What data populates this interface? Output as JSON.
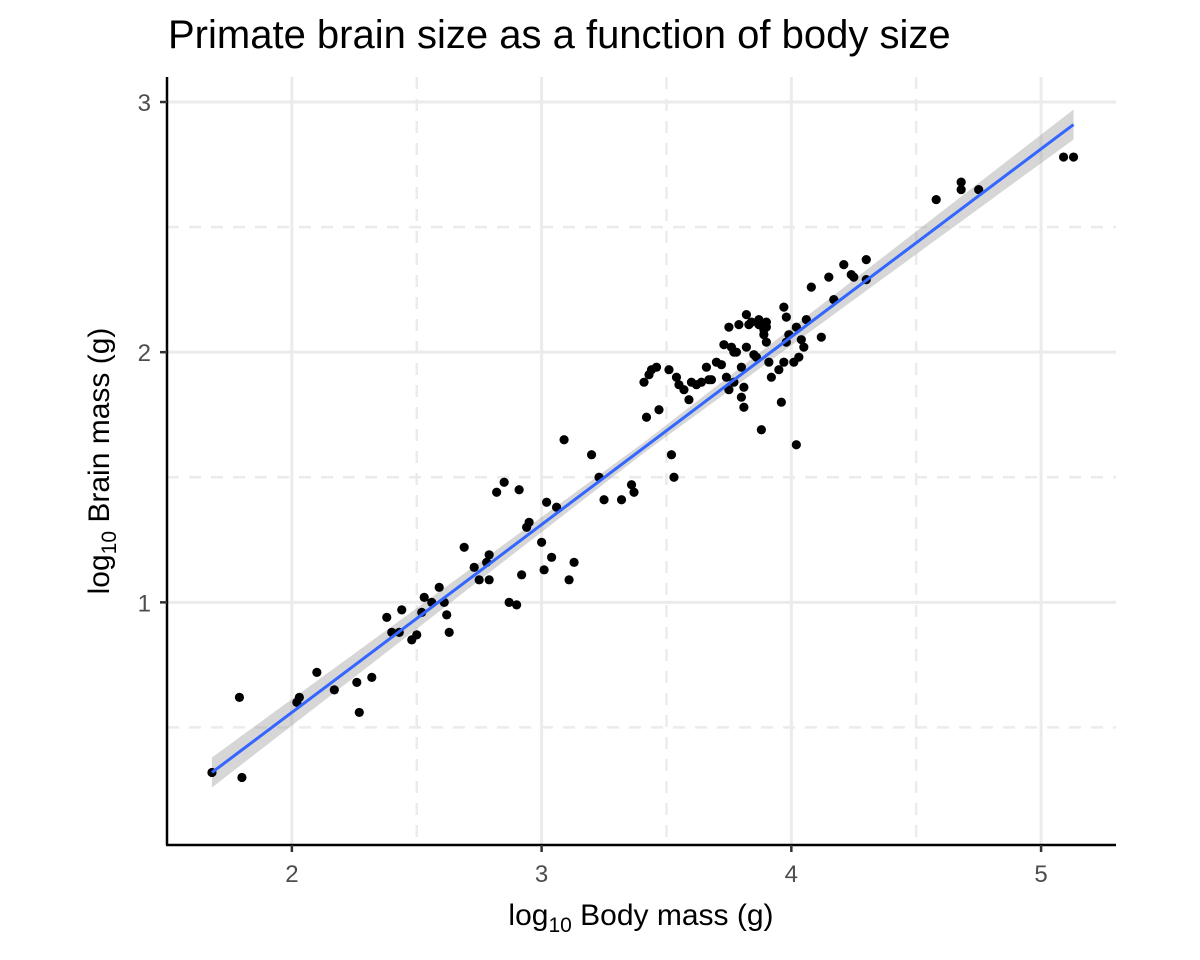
{
  "chart_data": {
    "type": "scatter",
    "title": "Primate brain size as a function of body size",
    "xlabel": {
      "prefix": "log",
      "subscript": "10",
      "suffix": " Body mass (g)"
    },
    "ylabel": {
      "prefix": "log",
      "subscript": "10",
      "suffix": " Brain mass (g)"
    },
    "xlim": [
      1.5,
      5.3
    ],
    "ylim": [
      0.03,
      3.1
    ],
    "xticks": [
      2,
      3,
      4,
      5
    ],
    "xtick_labels": [
      "2",
      "3",
      "4",
      "5"
    ],
    "yticks": [
      1,
      2,
      3
    ],
    "ytick_labels": [
      "1",
      "2",
      "3"
    ],
    "x_minor": [
      2.5,
      3.5,
      4.5
    ],
    "y_minor": [
      0.5,
      1.5,
      2.5
    ],
    "grid": true,
    "fit": {
      "type": "linear",
      "x": [
        1.68,
        5.13
      ],
      "y": [
        0.32,
        2.91
      ],
      "se_band": 0.06,
      "color": "#3366ff"
    },
    "point_color": "#000000",
    "points": [
      [
        1.68,
        0.32
      ],
      [
        1.79,
        0.62
      ],
      [
        1.8,
        0.3
      ],
      [
        2.02,
        0.6
      ],
      [
        2.03,
        0.62
      ],
      [
        2.1,
        0.72
      ],
      [
        2.17,
        0.65
      ],
      [
        2.26,
        0.68
      ],
      [
        2.27,
        0.56
      ],
      [
        2.32,
        0.7
      ],
      [
        2.38,
        0.94
      ],
      [
        2.4,
        0.88
      ],
      [
        2.43,
        0.88
      ],
      [
        2.44,
        0.97
      ],
      [
        2.48,
        0.85
      ],
      [
        2.5,
        0.87
      ],
      [
        2.52,
        0.96
      ],
      [
        2.53,
        1.02
      ],
      [
        2.56,
        1.0
      ],
      [
        2.59,
        1.06
      ],
      [
        2.61,
        1.0
      ],
      [
        2.62,
        0.95
      ],
      [
        2.63,
        0.88
      ],
      [
        2.69,
        1.22
      ],
      [
        2.73,
        1.14
      ],
      [
        2.75,
        1.09
      ],
      [
        2.78,
        1.16
      ],
      [
        2.79,
        1.19
      ],
      [
        2.79,
        1.09
      ],
      [
        2.82,
        1.44
      ],
      [
        2.85,
        1.48
      ],
      [
        2.87,
        1.0
      ],
      [
        2.9,
        0.99
      ],
      [
        2.91,
        1.45
      ],
      [
        2.92,
        1.11
      ],
      [
        2.94,
        1.3
      ],
      [
        2.95,
        1.32
      ],
      [
        3.0,
        1.24
      ],
      [
        3.01,
        1.13
      ],
      [
        3.02,
        1.4
      ],
      [
        3.04,
        1.18
      ],
      [
        3.06,
        1.38
      ],
      [
        3.09,
        1.65
      ],
      [
        3.11,
        1.09
      ],
      [
        3.13,
        1.16
      ],
      [
        3.2,
        1.59
      ],
      [
        3.23,
        1.5
      ],
      [
        3.25,
        1.41
      ],
      [
        3.32,
        1.41
      ],
      [
        3.36,
        1.47
      ],
      [
        3.37,
        1.44
      ],
      [
        3.41,
        1.88
      ],
      [
        3.42,
        1.74
      ],
      [
        3.43,
        1.91
      ],
      [
        3.44,
        1.93
      ],
      [
        3.46,
        1.94
      ],
      [
        3.47,
        1.77
      ],
      [
        3.51,
        1.93
      ],
      [
        3.52,
        1.59
      ],
      [
        3.53,
        1.5
      ],
      [
        3.54,
        1.9
      ],
      [
        3.55,
        1.87
      ],
      [
        3.57,
        1.85
      ],
      [
        3.59,
        1.81
      ],
      [
        3.6,
        1.88
      ],
      [
        3.62,
        1.87
      ],
      [
        3.64,
        1.88
      ],
      [
        3.66,
        1.94
      ],
      [
        3.67,
        1.89
      ],
      [
        3.68,
        1.89
      ],
      [
        3.7,
        1.96
      ],
      [
        3.72,
        1.95
      ],
      [
        3.73,
        2.03
      ],
      [
        3.74,
        1.9
      ],
      [
        3.75,
        1.85
      ],
      [
        3.75,
        2.1
      ],
      [
        3.76,
        2.02
      ],
      [
        3.77,
        2.0
      ],
      [
        3.77,
        1.88
      ],
      [
        3.78,
        2.0
      ],
      [
        3.79,
        2.11
      ],
      [
        3.8,
        1.82
      ],
      [
        3.8,
        1.94
      ],
      [
        3.81,
        1.86
      ],
      [
        3.81,
        1.78
      ],
      [
        3.82,
        2.02
      ],
      [
        3.82,
        2.15
      ],
      [
        3.83,
        2.11
      ],
      [
        3.84,
        2.12
      ],
      [
        3.85,
        1.99
      ],
      [
        3.86,
        1.98
      ],
      [
        3.87,
        2.13
      ],
      [
        3.87,
        2.11
      ],
      [
        3.88,
        1.69
      ],
      [
        3.89,
        2.09
      ],
      [
        3.89,
        2.07
      ],
      [
        3.9,
        2.04
      ],
      [
        3.9,
        2.1
      ],
      [
        3.9,
        2.12
      ],
      [
        3.91,
        1.96
      ],
      [
        3.92,
        1.9
      ],
      [
        3.95,
        1.93
      ],
      [
        3.96,
        1.8
      ],
      [
        3.97,
        1.96
      ],
      [
        3.97,
        2.18
      ],
      [
        3.98,
        2.14
      ],
      [
        3.98,
        2.04
      ],
      [
        3.99,
        2.07
      ],
      [
        4.01,
        1.96
      ],
      [
        4.02,
        2.1
      ],
      [
        4.02,
        1.63
      ],
      [
        4.03,
        1.98
      ],
      [
        4.04,
        2.05
      ],
      [
        4.05,
        2.02
      ],
      [
        4.06,
        2.13
      ],
      [
        4.08,
        2.26
      ],
      [
        4.12,
        2.06
      ],
      [
        4.15,
        2.3
      ],
      [
        4.17,
        2.21
      ],
      [
        4.21,
        2.35
      ],
      [
        4.24,
        2.31
      ],
      [
        4.25,
        2.3
      ],
      [
        4.3,
        2.29
      ],
      [
        4.3,
        2.37
      ],
      [
        4.58,
        2.61
      ],
      [
        4.68,
        2.65
      ],
      [
        4.68,
        2.68
      ],
      [
        4.75,
        2.65
      ],
      [
        5.09,
        2.78
      ],
      [
        5.13,
        2.78
      ]
    ]
  }
}
